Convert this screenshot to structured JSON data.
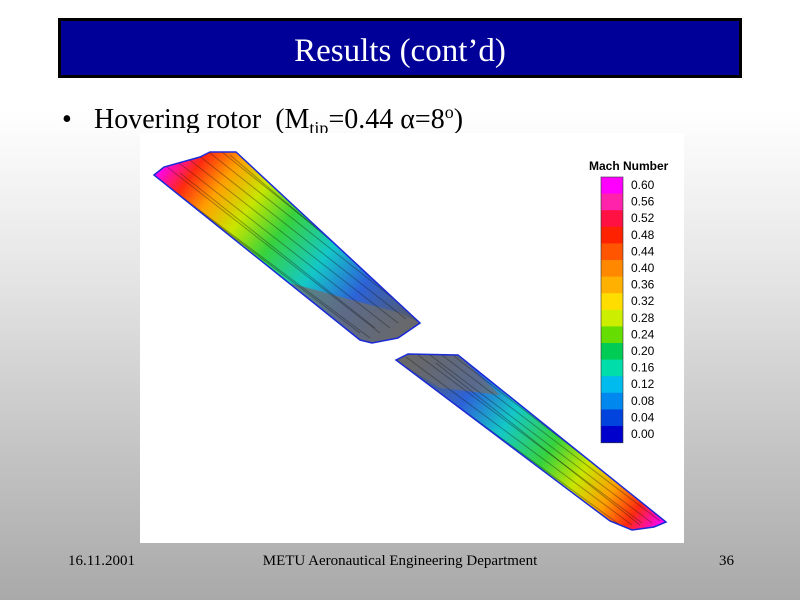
{
  "slide": {
    "title": "Results (cont’d)",
    "bullet": {
      "symbol": "•",
      "text_main": "Hovering rotor",
      "open": "(M",
      "subscript": "tip",
      "value_text": "=0.44 ",
      "alpha": "α",
      "alpha_value": "=8",
      "superscript": "o",
      "close": ")"
    }
  },
  "figure": {
    "legend_title": "Mach Number",
    "legend_levels": [
      "0.60",
      "0.56",
      "0.52",
      "0.48",
      "0.44",
      "0.40",
      "0.36",
      "0.32",
      "0.28",
      "0.24",
      "0.20",
      "0.16",
      "0.12",
      "0.08",
      "0.04",
      "0.00"
    ],
    "legend_colors": [
      "#ff00ff",
      "#ff22aa",
      "#ff1144",
      "#ff2200",
      "#ff5500",
      "#ff8800",
      "#ffb000",
      "#ffdd00",
      "#ccee00",
      "#66dd00",
      "#00cc55",
      "#00ddaa",
      "#00bbee",
      "#0088ee",
      "#0044dd",
      "#0000cc"
    ],
    "surface_gray": "#6e6e6e"
  },
  "footer": {
    "date": "16.11.2001",
    "department": "METU Aeronautical Engineering Department",
    "page": "36"
  }
}
